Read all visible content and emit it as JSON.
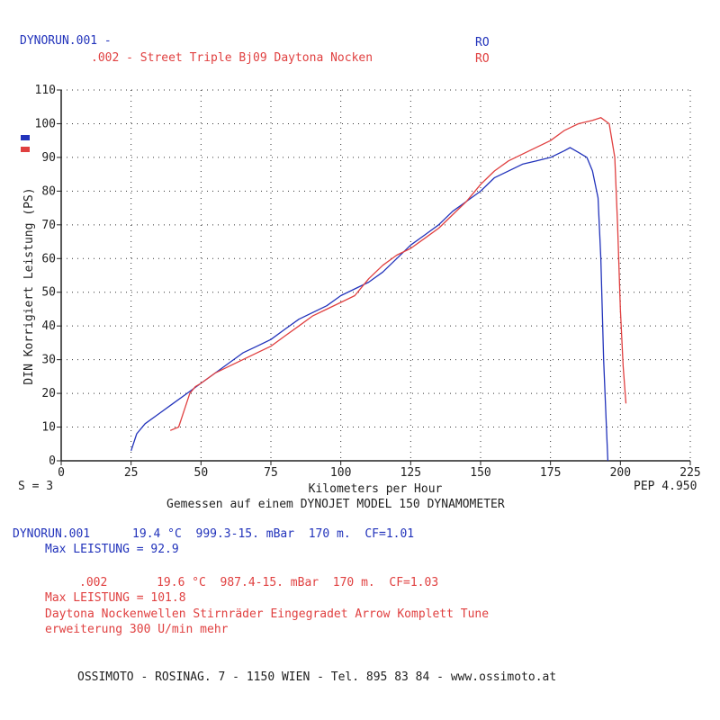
{
  "header": {
    "run1_label": "DYNORUN.001 -",
    "run1_code": "RO",
    "run2_label": ".002 - Street Triple Bj09 Daytona Nocken",
    "run2_code": "RO"
  },
  "footer_chart": {
    "s_label": "S = 3",
    "pep_label": "PEP 4.950",
    "measured": "Gemessen auf einem DYNOJET MODEL 150 DYNAMOMETER"
  },
  "runs": {
    "run1": {
      "line1": "DYNORUN.001      19.4 °C  999.3-15. mBar  170 m.  CF=1.01",
      "max": "Max LEISTUNG = 92.9"
    },
    "run2": {
      "line1": ".002       19.6 °C  987.4-15. mBar  170 m.  CF=1.03",
      "max": "Max LEISTUNG = 101.8",
      "note1": "Daytona Nockenwellen Stirnräder Eingegradet Arrow Komplett Tune",
      "note2": "erweiterung 300 U/min mehr"
    }
  },
  "address": "OSSIMOTO - ROSINAG. 7 - 1150 WIEN - Tel. 895 83 84 - www.ossimoto.at",
  "colors": {
    "run1": "#2233bb",
    "run2": "#e04040"
  },
  "chart_data": {
    "type": "line",
    "xlabel": "Kilometers per Hour",
    "ylabel": "DIN Korrigiert Leistung (PS)",
    "xlim": [
      0,
      225
    ],
    "ylim": [
      0,
      110
    ],
    "xticks": [
      0,
      25,
      50,
      75,
      100,
      125,
      150,
      175,
      200,
      225
    ],
    "yticks": [
      0,
      10,
      20,
      30,
      40,
      50,
      60,
      70,
      80,
      90,
      100,
      110
    ],
    "grid": true,
    "legend": "left",
    "series": [
      {
        "name": "DYNORUN.001",
        "color": "#2233bb",
        "points": [
          [
            25,
            3
          ],
          [
            27,
            8
          ],
          [
            30,
            11
          ],
          [
            35,
            14
          ],
          [
            40,
            17
          ],
          [
            45,
            20
          ],
          [
            50,
            23
          ],
          [
            55,
            26
          ],
          [
            60,
            29
          ],
          [
            65,
            32
          ],
          [
            70,
            34
          ],
          [
            75,
            36
          ],
          [
            80,
            39
          ],
          [
            85,
            42
          ],
          [
            90,
            44
          ],
          [
            95,
            46
          ],
          [
            100,
            49
          ],
          [
            105,
            51
          ],
          [
            110,
            53
          ],
          [
            115,
            56
          ],
          [
            120,
            60
          ],
          [
            125,
            64
          ],
          [
            130,
            67
          ],
          [
            135,
            70
          ],
          [
            140,
            74
          ],
          [
            145,
            77
          ],
          [
            150,
            80
          ],
          [
            155,
            84
          ],
          [
            160,
            86
          ],
          [
            165,
            88
          ],
          [
            170,
            89
          ],
          [
            175,
            90
          ],
          [
            180,
            92
          ],
          [
            182,
            92.9
          ],
          [
            185,
            91.5
          ],
          [
            188,
            90
          ],
          [
            190,
            86
          ],
          [
            192,
            78
          ],
          [
            193,
            60
          ],
          [
            194,
            30
          ],
          [
            195,
            10
          ],
          [
            195.5,
            0
          ]
        ]
      },
      {
        "name": ".002",
        "color": "#e04040",
        "points": [
          [
            39,
            9
          ],
          [
            42,
            10
          ],
          [
            44,
            15
          ],
          [
            46,
            20
          ],
          [
            48,
            22
          ],
          [
            50,
            23
          ],
          [
            55,
            26
          ],
          [
            60,
            28
          ],
          [
            65,
            30
          ],
          [
            70,
            32
          ],
          [
            75,
            34
          ],
          [
            80,
            37
          ],
          [
            85,
            40
          ],
          [
            90,
            43
          ],
          [
            95,
            45
          ],
          [
            100,
            47
          ],
          [
            105,
            49
          ],
          [
            110,
            54
          ],
          [
            115,
            58
          ],
          [
            120,
            61
          ],
          [
            125,
            63
          ],
          [
            130,
            66
          ],
          [
            135,
            69
          ],
          [
            140,
            73
          ],
          [
            145,
            77
          ],
          [
            150,
            82
          ],
          [
            155,
            86
          ],
          [
            160,
            89
          ],
          [
            165,
            91
          ],
          [
            170,
            93
          ],
          [
            175,
            95
          ],
          [
            180,
            98
          ],
          [
            185,
            100
          ],
          [
            190,
            101
          ],
          [
            193,
            101.8
          ],
          [
            196,
            100
          ],
          [
            198,
            90
          ],
          [
            199,
            70
          ],
          [
            200,
            45
          ],
          [
            201,
            28
          ],
          [
            202,
            17
          ]
        ]
      }
    ]
  }
}
